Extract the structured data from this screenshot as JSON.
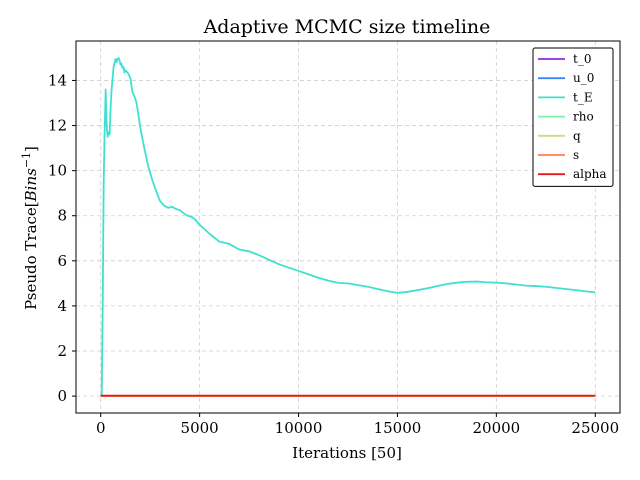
{
  "chart_data": {
    "type": "line",
    "title": "Adaptive MCMC size timeline",
    "xlabel": "Iterations [50]",
    "ylabel_prefix": "Pseudo Trace[",
    "ylabel_math": "Bins",
    "ylabel_exp": "−1",
    "ylabel_suffix": "]",
    "xlim": [
      -1250,
      26250
    ],
    "ylim": [
      -0.75,
      15.75
    ],
    "xticks": [
      0,
      5000,
      10000,
      15000,
      20000,
      25000
    ],
    "yticks": [
      0,
      2,
      4,
      6,
      8,
      10,
      12,
      14
    ],
    "grid": true,
    "legend_position": "upper right",
    "series": [
      {
        "name": "t_0",
        "color": "#8a2be2",
        "x": [
          0,
          25000
        ],
        "y": [
          0,
          0
        ]
      },
      {
        "name": "u_0",
        "color": "#3a86ff",
        "x": [
          0,
          25000
        ],
        "y": [
          0,
          0
        ]
      },
      {
        "name": "t_E",
        "color": "#40e0d0",
        "x": [
          50,
          100,
          150,
          200,
          250,
          300,
          350,
          400,
          450,
          500,
          550,
          600,
          650,
          700,
          750,
          800,
          850,
          900,
          950,
          1000,
          1050,
          1100,
          1150,
          1200,
          1250,
          1300,
          1400,
          1500,
          1600,
          1700,
          1800,
          1900,
          2000,
          2200,
          2400,
          2600,
          2800,
          3000,
          3200,
          3400,
          3600,
          3800,
          4000,
          4200,
          4400,
          4600,
          4800,
          5000,
          5500,
          6000,
          6500,
          7000,
          7500,
          8000,
          8500,
          9000,
          9500,
          10000,
          10500,
          11000,
          11500,
          12000,
          12500,
          13000,
          13500,
          14000,
          14500,
          15000,
          15500,
          16000,
          16500,
          17000,
          17500,
          18000,
          18500,
          19000,
          19500,
          20000,
          20500,
          21000,
          21500,
          22000,
          22500,
          23000,
          23500,
          24000,
          24500,
          25000
        ],
        "y": [
          0.0,
          4.0,
          9.5,
          11.8,
          13.6,
          12.0,
          11.5,
          11.7,
          11.6,
          12.8,
          13.6,
          14.1,
          14.6,
          14.8,
          14.95,
          14.8,
          14.95,
          15.0,
          14.9,
          14.7,
          14.75,
          14.55,
          14.6,
          14.35,
          14.45,
          14.4,
          14.3,
          14.1,
          13.5,
          13.3,
          13.05,
          12.5,
          11.9,
          11.0,
          10.2,
          9.6,
          9.1,
          8.65,
          8.45,
          8.35,
          8.4,
          8.3,
          8.25,
          8.1,
          8.0,
          7.95,
          7.8,
          7.6,
          7.2,
          6.85,
          6.75,
          6.5,
          6.42,
          6.25,
          6.05,
          5.85,
          5.7,
          5.55,
          5.4,
          5.25,
          5.12,
          5.02,
          5.0,
          4.92,
          4.85,
          4.75,
          4.65,
          4.58,
          4.62,
          4.7,
          4.78,
          4.88,
          4.97,
          5.03,
          5.07,
          5.08,
          5.05,
          5.03,
          5.0,
          4.95,
          4.9,
          4.88,
          4.85,
          4.8,
          4.75,
          4.7,
          4.65,
          4.6
        ]
      },
      {
        "name": "rho",
        "color": "#80f0a8",
        "x": [
          0,
          25000
        ],
        "y": [
          0,
          0
        ]
      },
      {
        "name": "q",
        "color": "#c8dc82",
        "x": [
          0,
          25000
        ],
        "y": [
          0,
          0
        ]
      },
      {
        "name": "s",
        "color": "#ff7f50",
        "x": [
          0,
          25000
        ],
        "y": [
          0,
          0
        ]
      },
      {
        "name": "alpha",
        "color": "#e31a1c",
        "x": [
          0,
          25000
        ],
        "y": [
          0.02,
          0.02
        ]
      }
    ]
  }
}
